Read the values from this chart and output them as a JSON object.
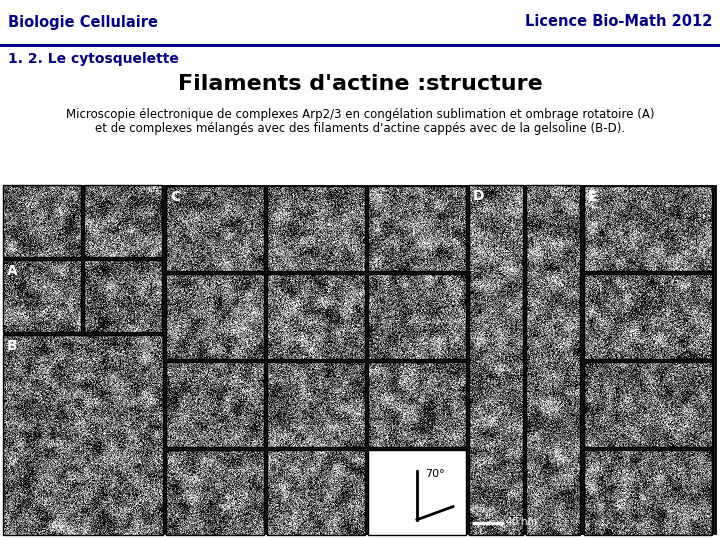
{
  "title_left": "Biologie Cellulaire",
  "title_right": "Licence Bio-Math 2012",
  "subtitle": "1. 2. Le cytosquelette",
  "main_title": "Filaments d'actine :structure",
  "description_line1": "Microscopie électronique de complexes Arp2/3 en congélation sublimation et ombrage rotatoire (A)",
  "description_line2": "et de complexes mélangés avec des filaments d'actine cappés avec de la gelsoline (B-D).",
  "bg_color": "#ffffff",
  "header_text_color": "#00008B",
  "header_line_color": "#00008B",
  "subtitle_color": "#00008B",
  "main_title_color": "#000000",
  "desc_color": "#000000"
}
